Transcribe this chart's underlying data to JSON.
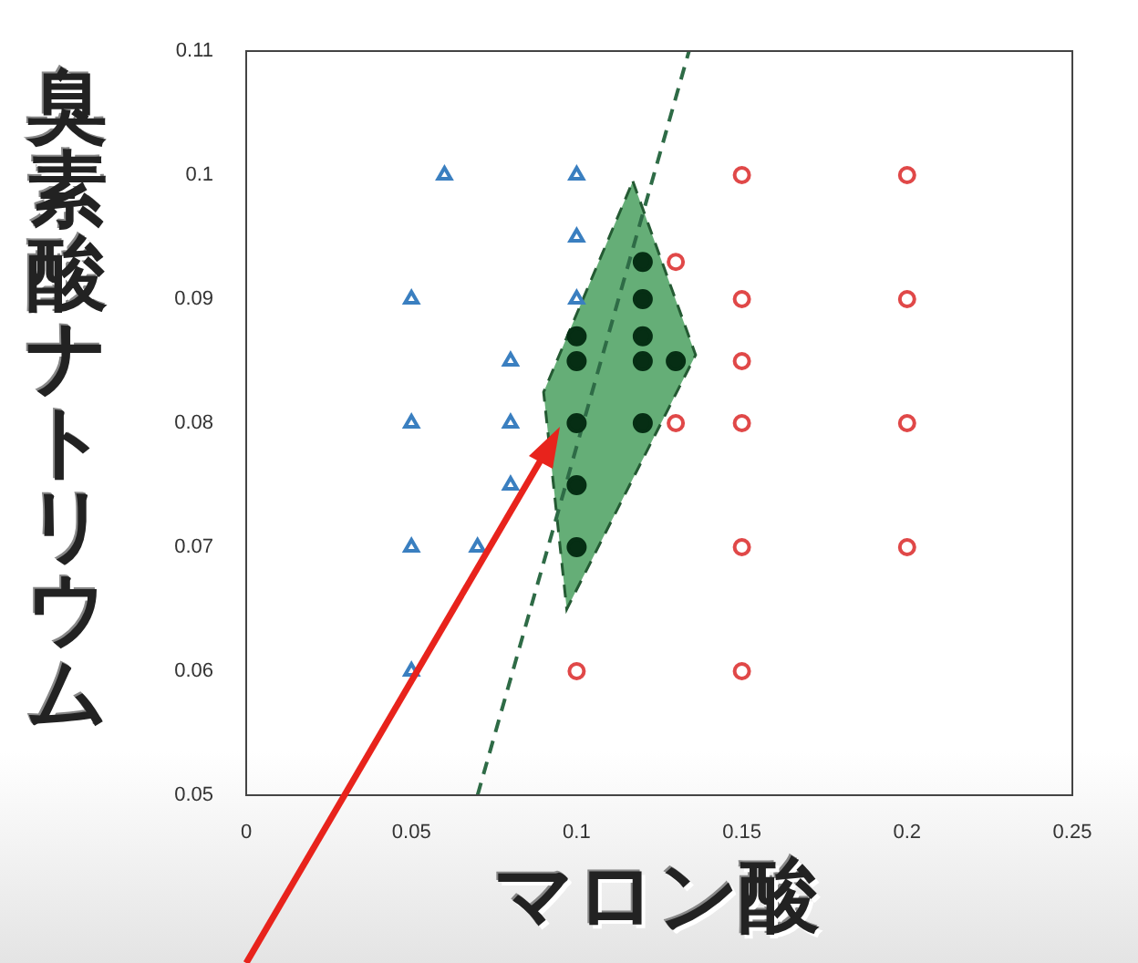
{
  "chart_data": {
    "type": "scatter",
    "xlabel": "マロン酸",
    "ylabel": "臭素酸ナトリウム",
    "xlim": [
      0,
      0.25
    ],
    "xticks": [
      0,
      0.05,
      0.1,
      0.15,
      0.2,
      0.25
    ],
    "ylim": [
      0.05,
      0.11
    ],
    "yticks": [
      0.05,
      0.06,
      0.07,
      0.08,
      0.09,
      0.1,
      0.11
    ],
    "legend": false,
    "series": [
      {
        "type": "area",
        "color": "#3f9a55",
        "line_style": "dashed",
        "x": [
          0.117,
          0.136,
          0.097,
          0.09,
          0.117
        ],
        "values": [
          0.0995,
          0.0855,
          0.065,
          0.0825,
          0.0995
        ]
      },
      {
        "type": "line",
        "color": "#2e6b46",
        "line_style": "dashed",
        "x": [
          0.07,
          0.134
        ],
        "values": [
          0.05,
          0.11
        ]
      },
      {
        "marker": "triangle",
        "color": "#3a7fc0",
        "x": [
          0.06,
          0.1,
          0.1,
          0.05,
          0.1,
          0.08,
          0.05,
          0.08,
          0.08,
          0.05,
          0.07,
          0.05
        ],
        "values": [
          0.1,
          0.1,
          0.095,
          0.09,
          0.09,
          0.085,
          0.08,
          0.08,
          0.075,
          0.07,
          0.07,
          0.06
        ]
      },
      {
        "marker": "circle",
        "color": "#e04848",
        "x": [
          0.13,
          0.15,
          0.2,
          0.15,
          0.2,
          0.15,
          0.13,
          0.15,
          0.2,
          0.15,
          0.2,
          0.1,
          0.15
        ],
        "values": [
          0.093,
          0.1,
          0.1,
          0.09,
          0.09,
          0.085,
          0.08,
          0.08,
          0.08,
          0.07,
          0.07,
          0.06,
          0.06
        ]
      },
      {
        "marker": "circle",
        "color": "#062e14",
        "x": [
          0.1,
          0.1,
          0.1,
          0.1,
          0.1,
          0.12,
          0.12,
          0.12,
          0.12,
          0.12,
          0.13
        ],
        "values": [
          0.087,
          0.085,
          0.08,
          0.075,
          0.07,
          0.093,
          0.09,
          0.087,
          0.085,
          0.08,
          0.085
        ]
      }
    ]
  }
}
